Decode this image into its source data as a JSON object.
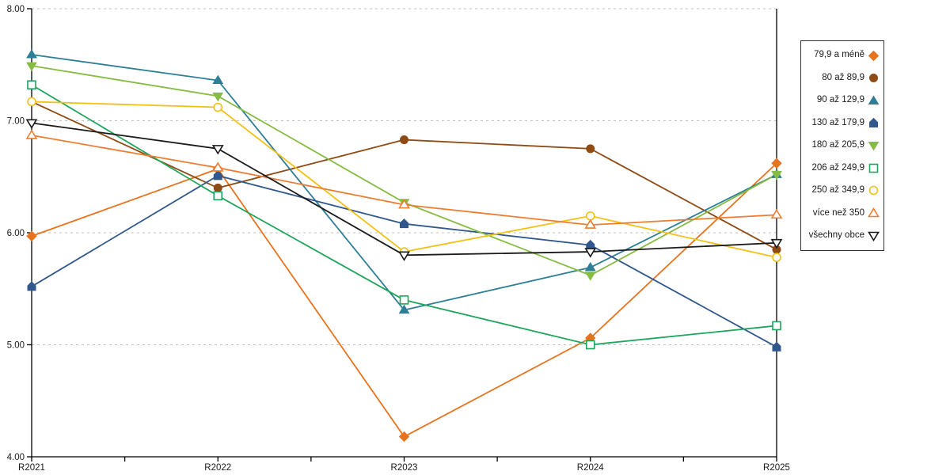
{
  "chart_data": {
    "type": "line",
    "title": "",
    "xlabel": "",
    "ylabel": "",
    "categories": [
      "R2021",
      "R2022",
      "R2023",
      "R2024",
      "R2025"
    ],
    "series": [
      {
        "name": "79,9 a méně",
        "color": "#E8731E",
        "marker": "diamond",
        "fill": "filled",
        "values": [
          5.97,
          6.57,
          4.18,
          5.06,
          6.62
        ]
      },
      {
        "name": "80 až 89,9",
        "color": "#8F4B15",
        "marker": "circle",
        "fill": "filled",
        "values": [
          7.17,
          6.4,
          6.83,
          6.75,
          5.85
        ]
      },
      {
        "name": "90 až 129,9",
        "color": "#2E7F96",
        "marker": "triangle-up",
        "fill": "filled",
        "values": [
          7.59,
          7.36,
          5.31,
          5.69,
          6.52
        ]
      },
      {
        "name": "130 až 179,9",
        "color": "#30588C",
        "marker": "pentagon",
        "fill": "filled",
        "values": [
          5.52,
          6.51,
          6.08,
          5.89,
          4.98
        ]
      },
      {
        "name": "180 až 205,9",
        "color": "#86BC42",
        "marker": "triangle-down",
        "fill": "filled",
        "values": [
          7.49,
          7.22,
          6.27,
          5.62,
          6.52
        ]
      },
      {
        "name": "206 až 249,9",
        "color": "#1EA55C",
        "marker": "square",
        "fill": "open",
        "values": [
          7.32,
          6.33,
          5.4,
          5.0,
          5.17
        ]
      },
      {
        "name": "250 až 349,9",
        "color": "#F2C116",
        "marker": "circle",
        "fill": "open",
        "values": [
          7.17,
          7.12,
          5.83,
          6.15,
          5.78
        ]
      },
      {
        "name": "více než 350",
        "color": "#ED7D31",
        "marker": "triangle-up",
        "fill": "open",
        "values": [
          6.87,
          6.58,
          6.25,
          6.07,
          6.16
        ]
      },
      {
        "name": "všechny obce",
        "color": "#1A1A1A",
        "marker": "triangle-down",
        "fill": "open",
        "values": [
          6.98,
          6.75,
          5.8,
          5.83,
          5.91
        ]
      }
    ],
    "ylim": [
      4,
      8
    ],
    "yticks": [
      {
        "value": 8,
        "label": "8.00"
      },
      {
        "value": 7,
        "label": "7.00"
      },
      {
        "value": 6,
        "label": "6.00"
      },
      {
        "value": 5,
        "label": "5.00"
      },
      {
        "value": 4,
        "label": "4.00"
      }
    ],
    "grid": "horizontal-dashed",
    "legend_position": "right",
    "axis_color": "#000000",
    "gridline_color": "#BFBFBF",
    "tick_label_color": "#1a1a1a"
  }
}
